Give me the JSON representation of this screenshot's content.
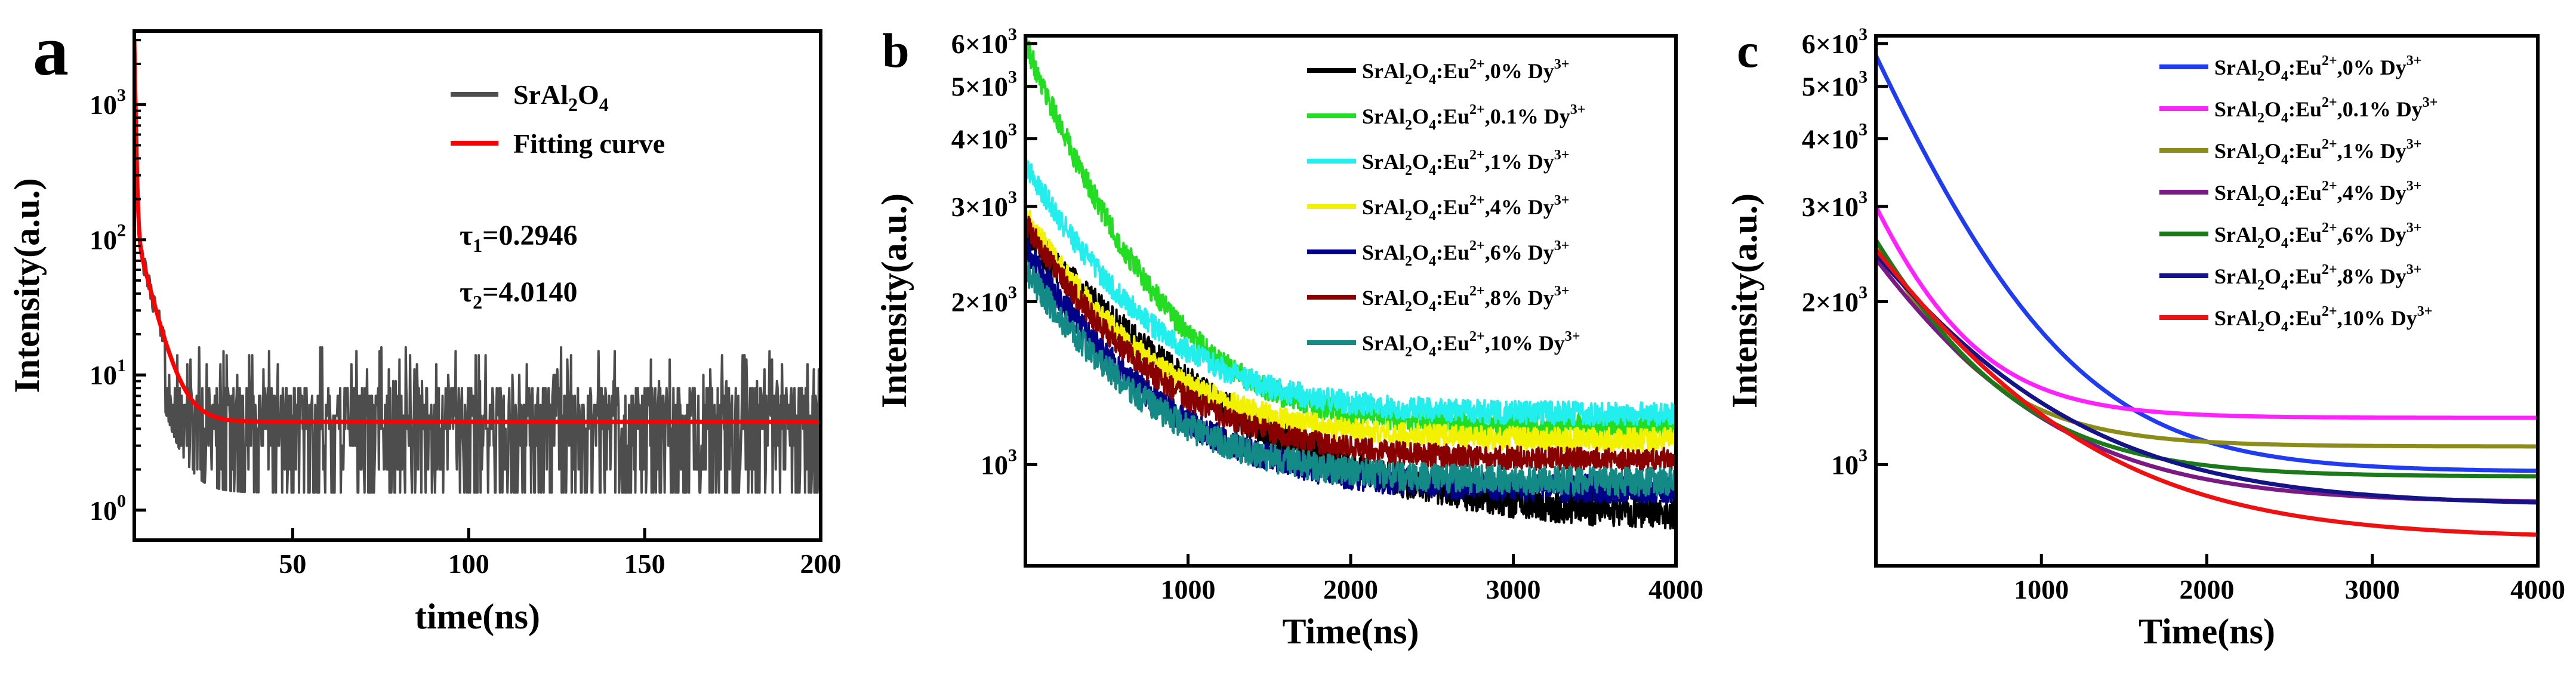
{
  "chart_data": [
    {
      "panel_label": "a",
      "type": "line",
      "xlabel": "time(ns)",
      "ylabel": "Intensity(a.u.)",
      "yscale": "log",
      "xlim": [
        5,
        200
      ],
      "ylim": [
        0.6,
        3500
      ],
      "xticks": [
        50,
        100,
        150,
        200
      ],
      "xtick_labels": [
        "50",
        "100",
        "150",
        "200"
      ],
      "yticks": [
        1,
        10,
        100,
        1000
      ],
      "ytick_labels": [
        {
          "base": "10",
          "exp": "0"
        },
        {
          "base": "10",
          "exp": "1"
        },
        {
          "base": "10",
          "exp": "2"
        },
        {
          "base": "10",
          "exp": "3"
        }
      ],
      "series": [
        {
          "name": "SrAl2O4",
          "label_parts": [
            [
              "SrAl",
              false
            ],
            [
              "2",
              true
            ],
            [
              "O",
              false
            ],
            [
              "4",
              true
            ]
          ],
          "color": "#4d4d4d",
          "kind": "noisy-decay",
          "peak": 3000,
          "tau1": 0.2946,
          "tau2": 4.014,
          "plateau": 4.5,
          "amp2": 120,
          "noise": [
            1,
            16
          ]
        },
        {
          "name": "Fitting curve",
          "label_parts": [
            [
              "Fitting curve",
              false
            ]
          ],
          "color": "#ff0000",
          "kind": "fit",
          "peak": 3000,
          "tau1": 0.2946,
          "tau2": 4.014,
          "plateau": 4.5,
          "amp2": 120
        }
      ],
      "annotations": [
        {
          "sym": "τ",
          "sub": "1",
          "text": "=0.2946"
        },
        {
          "sym": "τ",
          "sub": "2",
          "text": "=4.0140"
        }
      ]
    },
    {
      "panel_label": "b",
      "type": "line",
      "xlabel": "Time(ns)",
      "ylabel": "Intensity(a.u.)",
      "yscale": "log",
      "xlim": [
        0,
        4000
      ],
      "ylim": [
        650,
        6200
      ],
      "xticks": [
        1000,
        2000,
        3000,
        4000
      ],
      "xtick_labels": [
        "1000",
        "2000",
        "3000",
        "4000"
      ],
      "yticks": [
        1000,
        2000,
        3000,
        4000,
        5000,
        6000
      ],
      "ytick_labels": [
        {
          "base": "10",
          "exp": "3"
        },
        {
          "base": "2×10",
          "exp": "3"
        },
        {
          "base": "3×10",
          "exp": "3"
        },
        {
          "base": "4×10",
          "exp": "3"
        },
        {
          "base": "5×10",
          "exp": "3"
        },
        {
          "base": "6×10",
          "exp": "3"
        }
      ],
      "series": [
        {
          "name": "SrAl2O4:Eu2+,0% Dy3+",
          "pct": "0%",
          "color": "#000000",
          "start": 2700,
          "end": 790,
          "tau": 900,
          "noise": 0.07
        },
        {
          "name": "SrAl2O4:Eu2+,0.1% Dy3+",
          "pct": "0.1%",
          "color": "#22dd22",
          "start": 6000,
          "end": 1180,
          "tau": 470,
          "noise": 0.05
        },
        {
          "name": "SrAl2O4:Eu2+,1% Dy3+",
          "pct": "1%",
          "color": "#22eeee",
          "start": 3600,
          "end": 1240,
          "tau": 550,
          "noise": 0.05
        },
        {
          "name": "SrAl2O4:Eu2+,4% Dy3+",
          "pct": "4%",
          "color": "#f2f200",
          "start": 2900,
          "end": 1110,
          "tau": 560,
          "noise": 0.05
        },
        {
          "name": "SrAl2O4:Eu2+,6% Dy3+",
          "pct": "6%",
          "color": "#000088",
          "start": 2500,
          "end": 900,
          "tau": 600,
          "noise": 0.06
        },
        {
          "name": "SrAl2O4:Eu2+,8% Dy3+",
          "pct": "8%",
          "color": "#880000",
          "start": 2800,
          "end": 1020,
          "tau": 570,
          "noise": 0.05
        },
        {
          "name": "SrAl2O4:Eu2+,10% Dy3+",
          "pct": "10%",
          "color": "#138a86",
          "start": 2300,
          "end": 930,
          "tau": 580,
          "noise": 0.06
        }
      ]
    },
    {
      "panel_label": "c",
      "type": "line",
      "xlabel": "Time(ns)",
      "ylabel": "Intensity(a.u.)",
      "yscale": "log",
      "xlim": [
        0,
        4000
      ],
      "ylim": [
        650,
        6200
      ],
      "xticks": [
        1000,
        2000,
        3000,
        4000
      ],
      "xtick_labels": [
        "1000",
        "2000",
        "3000",
        "4000"
      ],
      "yticks": [
        1000,
        2000,
        3000,
        4000,
        5000,
        6000
      ],
      "ytick_labels": [
        {
          "base": "10",
          "exp": "3"
        },
        {
          "base": "2×10",
          "exp": "3"
        },
        {
          "base": "3×10",
          "exp": "3"
        },
        {
          "base": "4×10",
          "exp": "3"
        },
        {
          "base": "5×10",
          "exp": "3"
        },
        {
          "base": "6×10",
          "exp": "3"
        }
      ],
      "series": [
        {
          "name": "SrAl2O4:Eu2+,0% Dy3+",
          "pct": "0%",
          "color": "#1f3cf0",
          "start": 5700,
          "end": 970,
          "tau": 560
        },
        {
          "name": "SrAl2O4:Eu2+,0.1% Dy3+",
          "pct": "0.1%",
          "color": "#ff22ff",
          "start": 3000,
          "end": 1220,
          "tau": 420
        },
        {
          "name": "SrAl2O4:Eu2+,1% Dy3+",
          "pct": "1%",
          "color": "#8c8c1a",
          "start": 2600,
          "end": 1080,
          "tau": 470
        },
        {
          "name": "SrAl2O4:Eu2+,4% Dy3+",
          "pct": "4%",
          "color": "#7a1a85",
          "start": 2400,
          "end": 850,
          "tau": 700
        },
        {
          "name": "SrAl2O4:Eu2+,6% Dy3+",
          "pct": "6%",
          "color": "#1a7a1a",
          "start": 2600,
          "end": 950,
          "tau": 560
        },
        {
          "name": "SrAl2O4:Eu2+,8% Dy3+",
          "pct": "8%",
          "color": "#141488",
          "start": 2450,
          "end": 840,
          "tau": 800
        },
        {
          "name": "SrAl2O4:Eu2+,10% Dy3+",
          "pct": "10%",
          "color": "#ee1111",
          "start": 2500,
          "end": 730,
          "tau": 800
        }
      ]
    }
  ]
}
